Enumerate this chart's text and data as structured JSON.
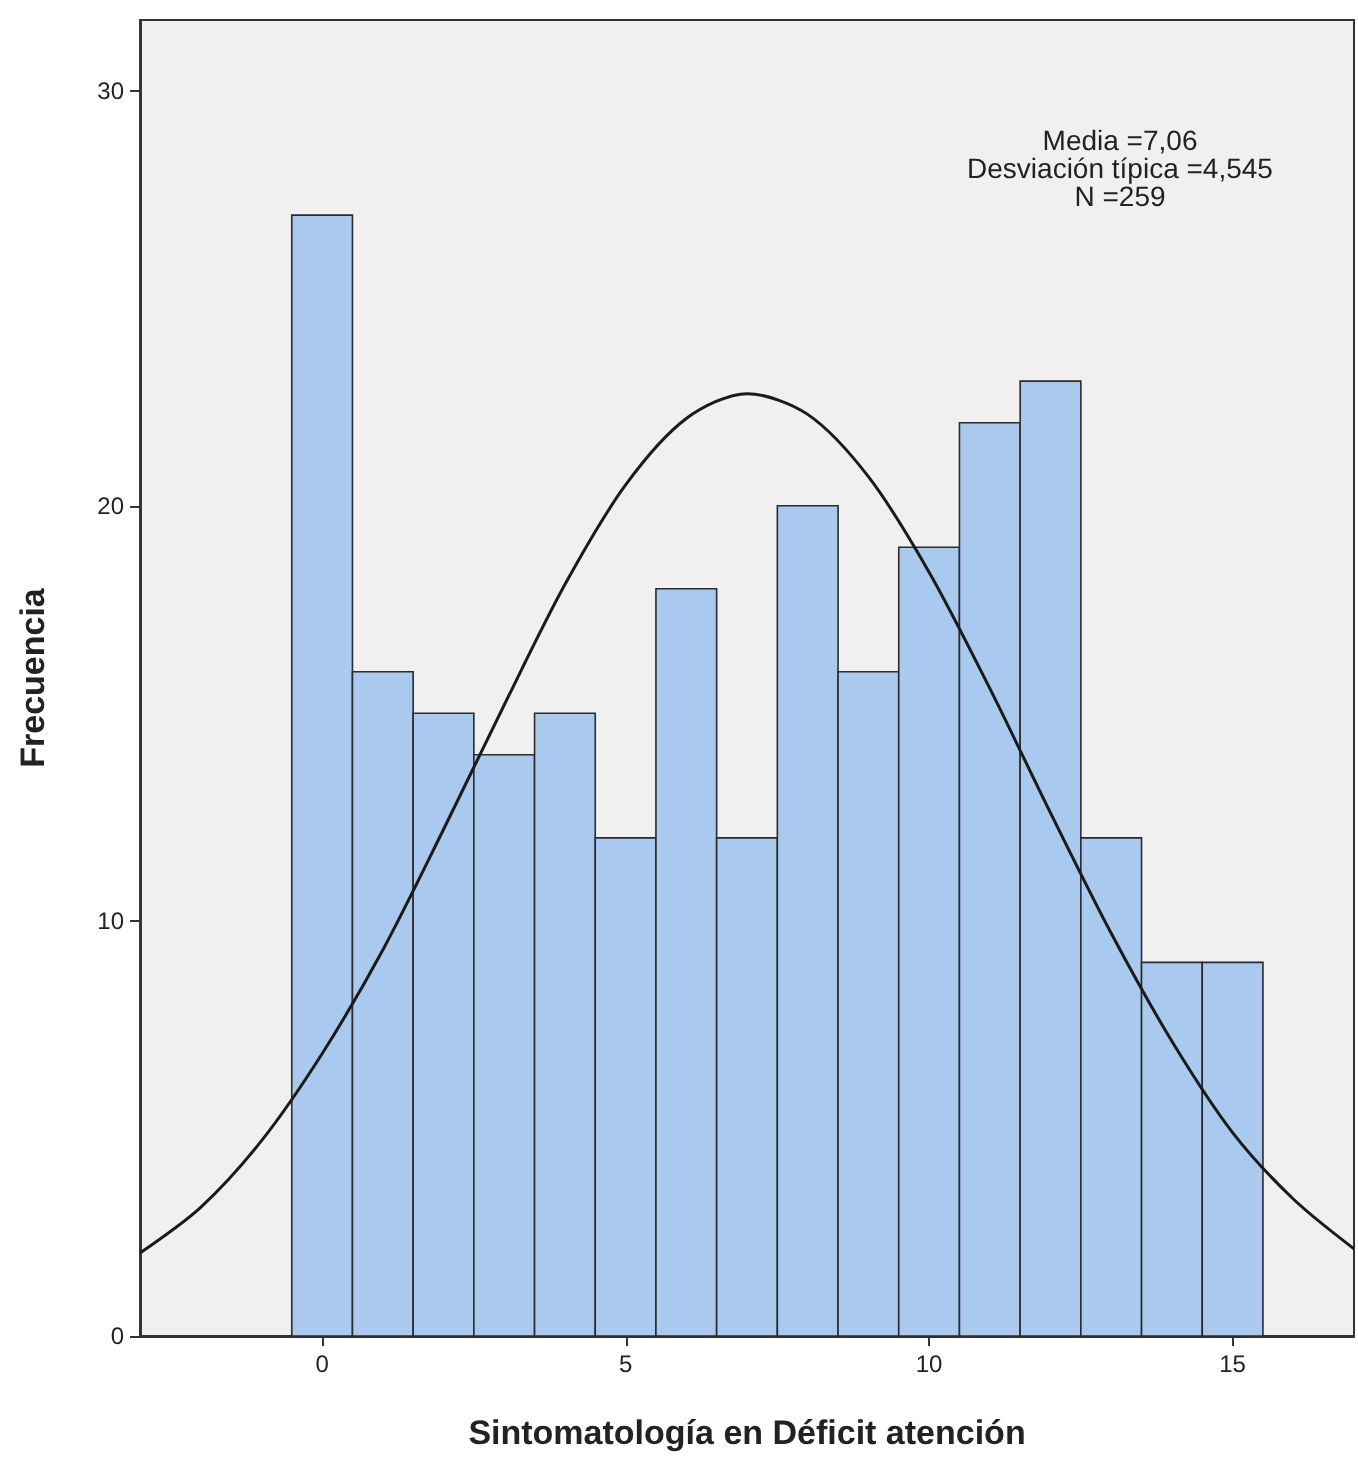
{
  "chart_data": {
    "type": "histogram",
    "xlabel": "Sintomatología en Déficit atención",
    "ylabel": "Frecuencia",
    "bins": [
      -0.5,
      0.5,
      1.5,
      2.5,
      3.5,
      4.5,
      5.5,
      6.5,
      7.5,
      8.5,
      9.5,
      10.5,
      11.5,
      12.5,
      13.5,
      14.5,
      15.5
    ],
    "values": [
      27,
      16,
      15,
      14,
      15,
      12,
      18,
      12,
      20,
      16,
      19,
      22,
      23,
      12,
      9,
      9
    ],
    "color": "#a9c9ee",
    "series": [
      {
        "type": "line",
        "color": "#1a1a1a",
        "x": [
          -3,
          -2,
          -1,
          0,
          1,
          2,
          3,
          4,
          5,
          6,
          7,
          8,
          9,
          10,
          11,
          12,
          13,
          14,
          15,
          16,
          17
        ],
        "values": [
          2.0,
          3.1,
          4.7,
          6.8,
          9.3,
          12.2,
          15.2,
          18.1,
          20.5,
          22.1,
          22.7,
          22.2,
          20.7,
          18.4,
          15.6,
          12.6,
          9.7,
          7.1,
          4.9,
          3.3,
          2.1
        ]
      }
    ],
    "xlim": [
      -3,
      17
    ],
    "ylim": [
      0,
      31.7
    ],
    "xticks": [
      0,
      5,
      10,
      15
    ],
    "yticks": [
      0,
      10,
      20,
      30
    ],
    "grid": false,
    "marker": "none",
    "annotations": [
      "Media =7,06",
      "Desviación típica =4,545",
      "N =259"
    ]
  }
}
